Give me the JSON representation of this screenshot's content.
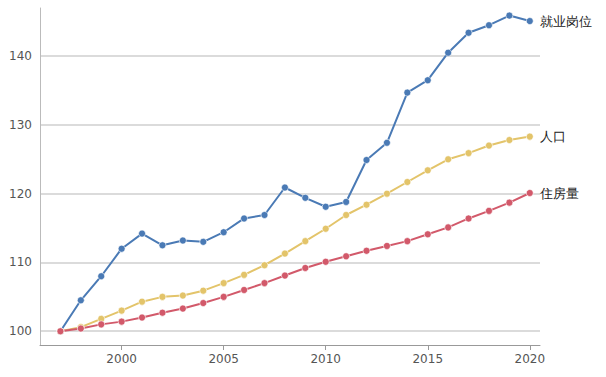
{
  "chart_data": {
    "type": "line",
    "x": [
      1997,
      1998,
      1999,
      2000,
      2001,
      2002,
      2003,
      2004,
      2005,
      2006,
      2007,
      2008,
      2009,
      2010,
      2011,
      2012,
      2013,
      2014,
      2015,
      2016,
      2017,
      2018,
      2019,
      2020
    ],
    "series": [
      {
        "name": "就业岗位",
        "color": "#4a7ab5",
        "values": [
          100,
          104.5,
          108,
          112,
          114.2,
          112.5,
          113.2,
          113,
          114.4,
          116.4,
          116.9,
          120.9,
          119.4,
          118.1,
          118.8,
          124.9,
          127.4,
          134.7,
          136.5,
          140.5,
          143.4,
          144.5,
          145.9,
          145.1
        ]
      },
      {
        "name": "人口",
        "color": "#e3c46a",
        "values": [
          100,
          100.6,
          101.8,
          103,
          104.3,
          105,
          105.2,
          105.9,
          107,
          108.2,
          109.6,
          111.3,
          113.1,
          114.9,
          116.9,
          118.4,
          120,
          121.7,
          123.4,
          125,
          125.9,
          127,
          127.8,
          128.3
        ]
      },
      {
        "name": "住房量",
        "color": "#d2596a",
        "values": [
          100,
          100.4,
          101,
          101.4,
          102,
          102.7,
          103.3,
          104.1,
          105,
          106,
          107,
          108.1,
          109.2,
          110.1,
          110.9,
          111.7,
          112.4,
          113.1,
          114.1,
          115.1,
          116.4,
          117.5,
          118.7,
          120.1
        ]
      }
    ],
    "xlim": [
      1996,
      2020.5
    ],
    "xticks": [
      2000,
      2005,
      2010,
      2015,
      2020
    ],
    "ylim": [
      98,
      147
    ],
    "yticks": [
      100,
      110,
      120,
      130,
      140
    ],
    "grid": true,
    "marker": "circle"
  }
}
